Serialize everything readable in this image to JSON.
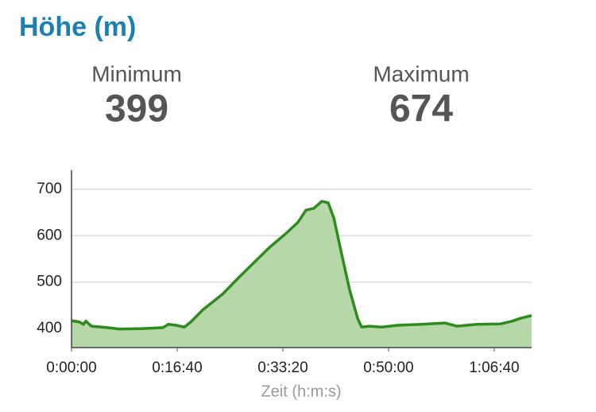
{
  "title": "Höhe (m)",
  "stats": [
    {
      "label": "Minimum",
      "value": 399
    },
    {
      "label": "Maximum",
      "value": 674
    }
  ],
  "chart_data": {
    "type": "area",
    "x_label": "Zeit (h:m:s)",
    "x": [
      0,
      75,
      113,
      135,
      188,
      338,
      451,
      677,
      865,
      917,
      993,
      1068,
      1128,
      1241,
      1429,
      1579,
      1730,
      1880,
      2030,
      2143,
      2218,
      2293,
      2369,
      2429,
      2482,
      2557,
      2632,
      2707,
      2745,
      2820,
      2933,
      3083,
      3309,
      3534,
      3647,
      3835,
      4061,
      4173,
      4249,
      4354
    ],
    "values": [
      417,
      414,
      409,
      416,
      405,
      402,
      399,
      400,
      402,
      409,
      407,
      403,
      414,
      440,
      474,
      509,
      543,
      576,
      605,
      629,
      655,
      659,
      674,
      671,
      638,
      560,
      483,
      422,
      403,
      405,
      403,
      407,
      409,
      412,
      405,
      409,
      410,
      416,
      422,
      428
    ],
    "xlim": [
      0,
      4354
    ],
    "xticks": [
      {
        "value": 0,
        "label": "0:00:00"
      },
      {
        "value": 1000,
        "label": "0:16:40"
      },
      {
        "value": 2000,
        "label": "0:33:20"
      },
      {
        "value": 3000,
        "label": "0:50:00"
      },
      {
        "value": 4000,
        "label": "1:06:40"
      }
    ],
    "ylim": [
      359,
      741
    ],
    "yticks": [
      400,
      500,
      600,
      700
    ],
    "grid": true,
    "color": "#2e8b1e",
    "fill": "#b6d8a9"
  }
}
